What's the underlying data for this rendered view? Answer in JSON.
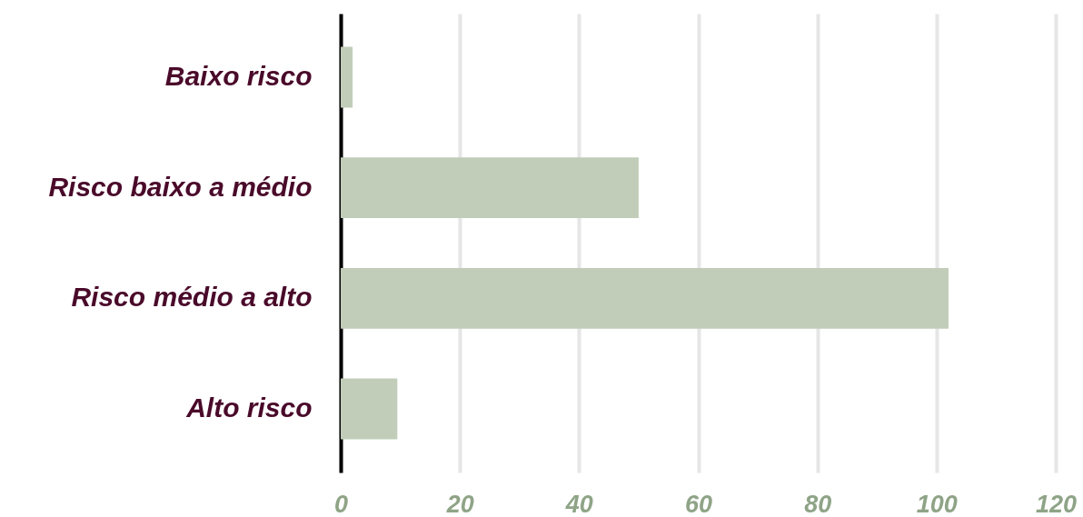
{
  "chart_data": {
    "type": "bar",
    "orientation": "horizontal",
    "categories": [
      "Baixo risco",
      "Risco baixo a médio",
      "Risco médio a alto",
      "Alto risco"
    ],
    "values": [
      2,
      50,
      102,
      9.5
    ],
    "color": "#c1cdb9",
    "xlim": [
      0,
      120
    ],
    "xticks": [
      0,
      20,
      40,
      60,
      80,
      100,
      120
    ],
    "grid": "x"
  }
}
